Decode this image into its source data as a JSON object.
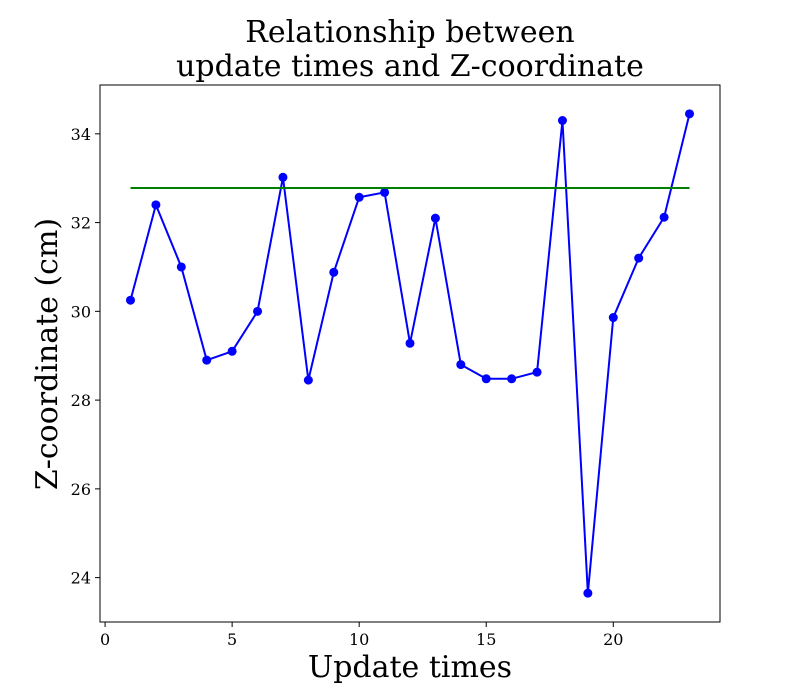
{
  "chart_data": {
    "type": "line",
    "title_lines": [
      "Relationship between",
      "update times and Z-coordinate"
    ],
    "xlabel": "Update times",
    "ylabel": "Z-coordinate (cm)",
    "xlim": [
      -0.2,
      24.2
    ],
    "ylim": [
      23.0,
      35.1
    ],
    "xticks": [
      0,
      5,
      10,
      15,
      20
    ],
    "yticks": [
      24,
      26,
      28,
      30,
      32,
      34
    ],
    "grid": false,
    "series": [
      {
        "color": "#0000ff",
        "marker": "circle",
        "x": [
          1,
          2,
          3,
          4,
          5,
          6,
          7,
          8,
          9,
          10,
          11,
          12,
          13,
          14,
          15,
          16,
          17,
          18,
          19,
          20,
          21,
          22,
          23
        ],
        "y": [
          30.25,
          32.4,
          31.0,
          28.9,
          29.1,
          30.0,
          33.02,
          28.45,
          30.88,
          32.57,
          32.68,
          29.28,
          32.1,
          28.8,
          28.48,
          28.48,
          28.63,
          34.3,
          23.65,
          29.86,
          31.2,
          32.12,
          34.45
        ]
      },
      {
        "color": "#008000",
        "marker": "none",
        "x": [
          1,
          23
        ],
        "y": [
          32.78,
          32.78
        ]
      }
    ]
  }
}
